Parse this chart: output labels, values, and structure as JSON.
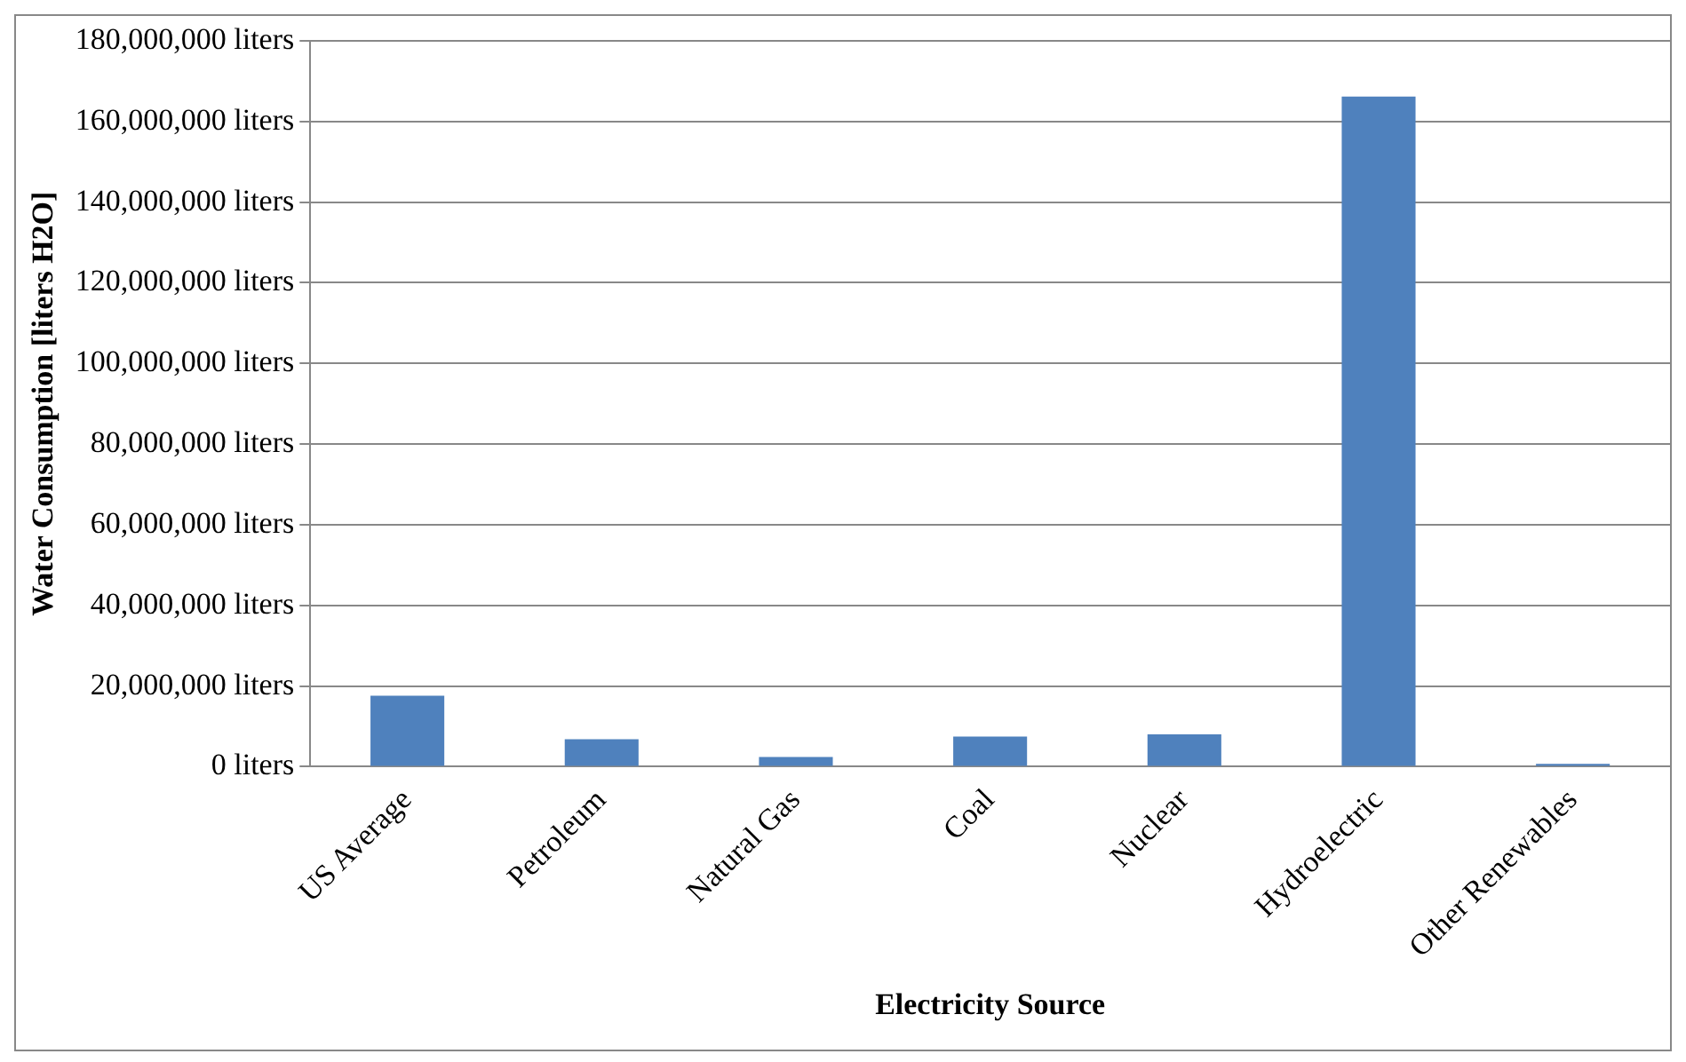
{
  "chart_data": {
    "type": "bar",
    "xlabel": "Electricity Source",
    "ylabel": "Water Consumption [liters H2O]",
    "categories": [
      "US Average",
      "Petroleum",
      "Natural Gas",
      "Coal",
      "Nuclear",
      "Hydroelectric",
      "Other Renewables"
    ],
    "values": [
      17600000,
      6800000,
      2400000,
      7500000,
      8000000,
      166200000,
      700000
    ],
    "color": "#4f81bd",
    "ylim": [
      0,
      180000000
    ],
    "yticks": [
      {
        "value": 0,
        "label": "0 liters"
      },
      {
        "value": 20000000,
        "label": "20,000,000 liters"
      },
      {
        "value": 40000000,
        "label": "40,000,000 liters"
      },
      {
        "value": 60000000,
        "label": "60,000,000 liters"
      },
      {
        "value": 80000000,
        "label": "80,000,000 liters"
      },
      {
        "value": 100000000,
        "label": "100,000,000 liters"
      },
      {
        "value": 120000000,
        "label": "120,000,000 liters"
      },
      {
        "value": 140000000,
        "label": "140,000,000 liters"
      },
      {
        "value": 160000000,
        "label": "160,000,000 liters"
      },
      {
        "value": 180000000,
        "label": "180,000,000 liters"
      }
    ],
    "grid": "y",
    "legend": false
  }
}
